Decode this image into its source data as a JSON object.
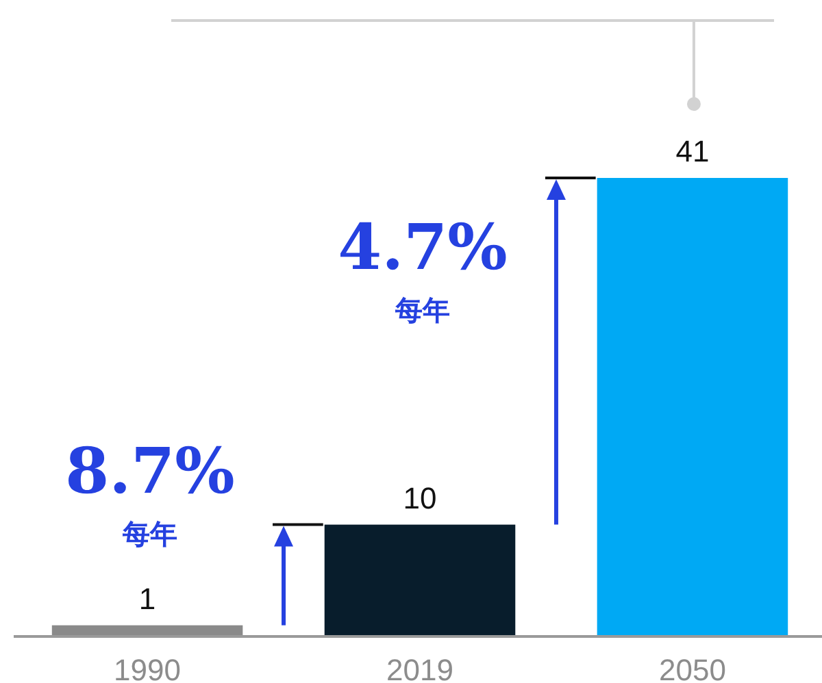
{
  "chart_data": {
    "type": "bar",
    "categories": [
      "1990",
      "2019",
      "2050"
    ],
    "values": [
      1,
      10,
      41
    ],
    "colors": [
      "#8a8a8a",
      "#081d2c",
      "#00a9f4"
    ],
    "data_labels": true,
    "annotations": [
      "8.7%",
      "每年",
      "4.7%",
      "每年"
    ]
  }
}
